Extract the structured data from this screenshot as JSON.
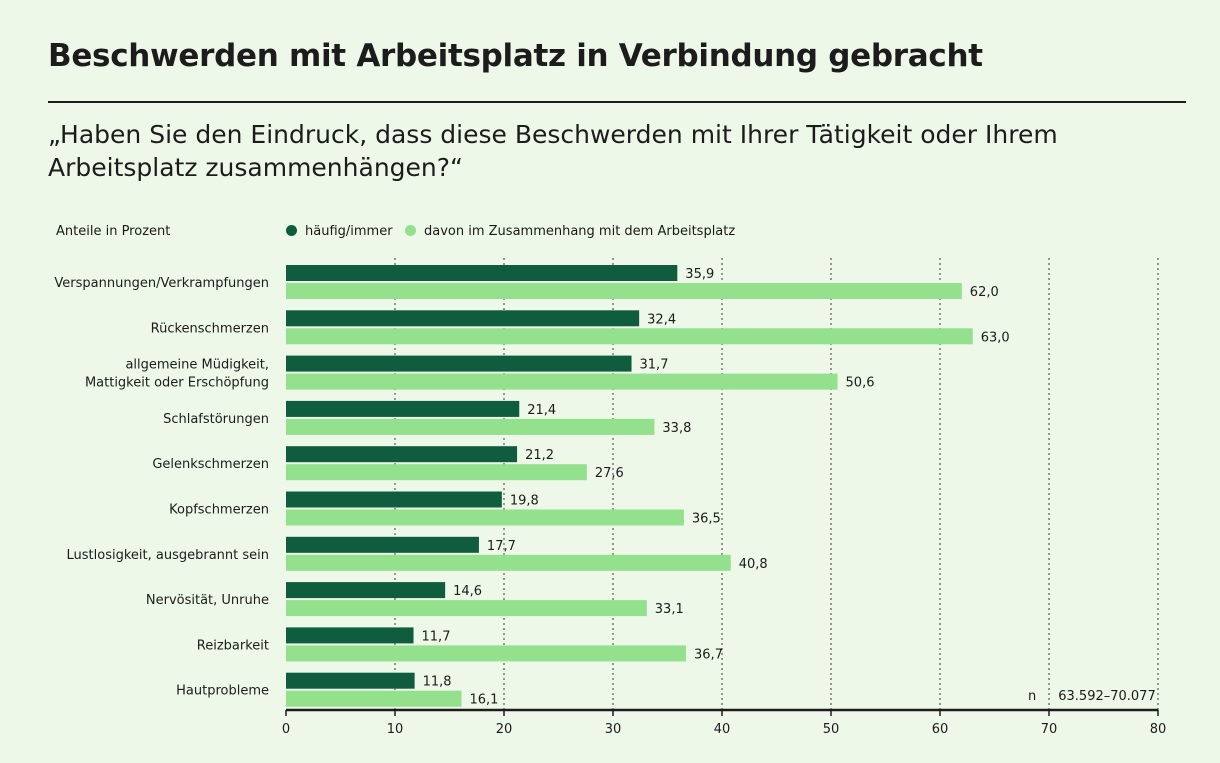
{
  "header": {
    "title": "Beschwerden mit Arbeitsplatz in Verbindung gebracht",
    "subtitle": "„Haben Sie den Eindruck, dass diese Beschwerden mit Ihrer Tätigkeit oder Ihrem Arbeitsplatz zusammenhängen?“"
  },
  "colors": {
    "background": "#eef8e9",
    "series_dark": "#0f5c3e",
    "series_light": "#93e08d",
    "text": "#1c1c1c"
  },
  "chart_data": {
    "type": "bar",
    "orientation": "horizontal",
    "unit_label": "Anteile in Prozent",
    "categories": [
      [
        "Verspannungen/Verkrampfungen"
      ],
      [
        "Rückenschmerzen"
      ],
      [
        "allgemeine Müdigkeit,",
        "Mattigkeit oder Erschöpfung"
      ],
      [
        "Schlafstörungen"
      ],
      [
        "Gelenkschmerzen"
      ],
      [
        "Kopfschmerzen"
      ],
      [
        "Lustlosigkeit, ausgebrannt sein"
      ],
      [
        "Nervösität, Unruhe"
      ],
      [
        "Reizbarkeit"
      ],
      [
        "Hautprobleme"
      ]
    ],
    "series": [
      {
        "name": "häufig/immer",
        "color": "#0f5c3e",
        "values": [
          35.9,
          32.4,
          31.7,
          21.4,
          21.2,
          19.8,
          17.7,
          14.6,
          11.7,
          11.8
        ],
        "labels": [
          "35,9",
          "32,4",
          "31,7",
          "21,4",
          "21,2",
          "19,8",
          "17,7",
          "14,6",
          "11,7",
          "11,8"
        ]
      },
      {
        "name": "davon im Zusammenhang mit dem Arbeitsplatz",
        "color": "#93e08d",
        "values": [
          62.0,
          63.0,
          50.6,
          33.8,
          27.6,
          36.5,
          40.8,
          33.1,
          36.7,
          16.1
        ],
        "labels": [
          "62,0",
          "63,0",
          "50,6",
          "33,8",
          "27,6",
          "36,5",
          "40,8",
          "33,1",
          "36,7",
          "16,1"
        ]
      }
    ],
    "xlim": [
      0,
      80
    ],
    "xticks": [
      "0",
      "10",
      "20",
      "30",
      "40",
      "50",
      "60",
      "70",
      "80"
    ],
    "grid": "vertical dotted",
    "note": {
      "label": "n",
      "value": "63.592–70.077"
    }
  }
}
